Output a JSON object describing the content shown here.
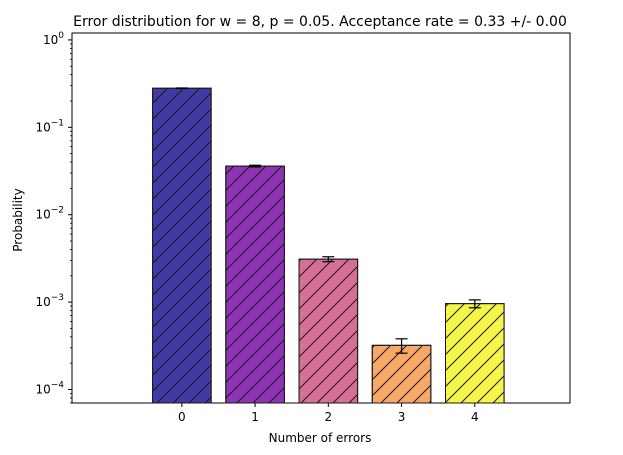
{
  "chart_data": {
    "type": "bar",
    "title": "Error distribution for w = 8, p = 0.05. Acceptance rate = 0.33 +/- 0.00",
    "xlabel": "Number of errors",
    "ylabel": "Probability",
    "y_scale": "log",
    "ylim": [
      7e-05,
      1.2
    ],
    "categories": [
      "0",
      "1",
      "2",
      "3",
      "4"
    ],
    "values": [
      0.28,
      0.036,
      0.0031,
      0.00032,
      0.00096
    ],
    "errors": [
      0.002,
      0.0008,
      0.0002,
      6e-05,
      0.0001
    ],
    "colors": [
      "#3d36a0",
      "#8c2fb4",
      "#d66b94",
      "#f7a664",
      "#f5f545"
    ],
    "hatch": "diagonal",
    "y_tick_labels": [
      {
        "base": "10",
        "exp": "0",
        "value": 1
      },
      {
        "base": "10",
        "exp": "-1",
        "value": 0.1
      },
      {
        "base": "10",
        "exp": "-2",
        "value": 0.01
      },
      {
        "base": "10",
        "exp": "-3",
        "value": 0.001
      },
      {
        "base": "10",
        "exp": "-4",
        "value": 0.0001
      }
    ],
    "grid": false,
    "legend": "none"
  }
}
